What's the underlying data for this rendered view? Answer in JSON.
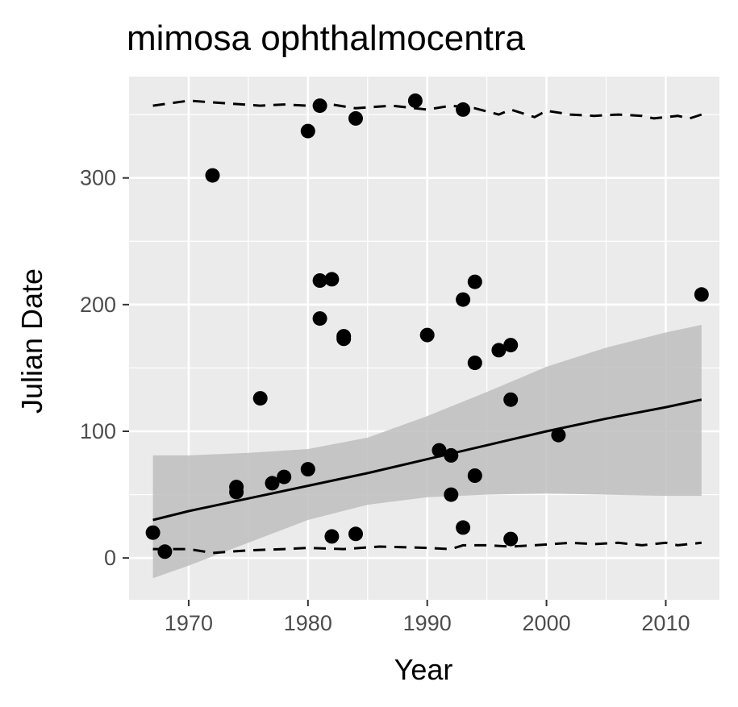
{
  "chart_data": {
    "type": "scatter",
    "title": "mimosa ophthalmocentra",
    "xlabel": "Year",
    "ylabel": "Julian Date",
    "xlim": [
      1965,
      2014.5
    ],
    "ylim": [
      -33,
      380
    ],
    "x_ticks": [
      1970,
      1980,
      1990,
      2000,
      2010
    ],
    "y_ticks": [
      0,
      100,
      200,
      300
    ],
    "x_tick_labels": [
      "1970",
      "1980",
      "1990",
      "2000",
      "2010"
    ],
    "y_tick_labels": [
      "0",
      "100",
      "200",
      "300"
    ],
    "grid": true,
    "colors": {
      "panel": "#ebebeb",
      "grid": "#ffffff",
      "points": "#000000",
      "ribbon": "#bebebe",
      "line": "#000000"
    },
    "points": [
      {
        "x": 1967,
        "y": 20
      },
      {
        "x": 1968,
        "y": 5
      },
      {
        "x": 1972,
        "y": 302
      },
      {
        "x": 1974,
        "y": 52
      },
      {
        "x": 1974,
        "y": 56
      },
      {
        "x": 1976,
        "y": 126
      },
      {
        "x": 1977,
        "y": 59
      },
      {
        "x": 1978,
        "y": 64
      },
      {
        "x": 1980,
        "y": 70
      },
      {
        "x": 1980,
        "y": 337
      },
      {
        "x": 1981,
        "y": 357
      },
      {
        "x": 1981,
        "y": 219
      },
      {
        "x": 1981,
        "y": 189
      },
      {
        "x": 1982,
        "y": 220
      },
      {
        "x": 1982,
        "y": 17
      },
      {
        "x": 1983,
        "y": 175
      },
      {
        "x": 1983,
        "y": 173
      },
      {
        "x": 1984,
        "y": 347
      },
      {
        "x": 1984,
        "y": 19
      },
      {
        "x": 1989,
        "y": 361
      },
      {
        "x": 1990,
        "y": 176
      },
      {
        "x": 1991,
        "y": 85
      },
      {
        "x": 1992,
        "y": 81
      },
      {
        "x": 1992,
        "y": 50
      },
      {
        "x": 1993,
        "y": 354
      },
      {
        "x": 1993,
        "y": 204
      },
      {
        "x": 1993,
        "y": 24
      },
      {
        "x": 1994,
        "y": 218
      },
      {
        "x": 1994,
        "y": 154
      },
      {
        "x": 1994,
        "y": 65
      },
      {
        "x": 1996,
        "y": 164
      },
      {
        "x": 1997,
        "y": 168
      },
      {
        "x": 1997,
        "y": 125
      },
      {
        "x": 1997,
        "y": 15
      },
      {
        "x": 2001,
        "y": 97
      },
      {
        "x": 2013,
        "y": 208
      }
    ],
    "fit_line": {
      "x": [
        1967,
        1970,
        1975,
        1980,
        1985,
        1990,
        1995,
        2000,
        2005,
        2010,
        2013
      ],
      "y": [
        30,
        37,
        47,
        57,
        67,
        78,
        89,
        100,
        110,
        119,
        125
      ]
    },
    "ribbon": {
      "x": [
        1967,
        1970,
        1975,
        1980,
        1985,
        1990,
        1995,
        2000,
        2005,
        2010,
        2013
      ],
      "lower": [
        -16,
        -6,
        12,
        30,
        42,
        48,
        50,
        51,
        50,
        49,
        49
      ],
      "upper": [
        81,
        81,
        83,
        86,
        95,
        112,
        131,
        151,
        166,
        178,
        184
      ]
    },
    "upper_dashed": {
      "x": [
        1967,
        1970,
        1973,
        1976,
        1978,
        1980,
        1982,
        1984,
        1987,
        1990,
        1992,
        1994,
        1996,
        1997,
        1999,
        2000,
        2002,
        2004,
        2006,
        2008,
        2009,
        2011,
        2012,
        2013
      ],
      "y": [
        357,
        361,
        359,
        357,
        358,
        357,
        358,
        355,
        357,
        354,
        357,
        355,
        350,
        354,
        348,
        353,
        350,
        349,
        350,
        349,
        347,
        349,
        347,
        350
      ]
    },
    "lower_dashed": {
      "x": [
        1967,
        1970,
        1972,
        1975,
        1978,
        1980,
        1983,
        1986,
        1990,
        1992,
        1993,
        1995,
        1997,
        1999,
        2002,
        2004,
        2006,
        2008,
        2010,
        2011,
        2013
      ],
      "y": [
        7,
        7,
        4,
        6,
        7,
        8,
        7,
        9,
        8,
        7,
        10,
        10,
        9,
        10,
        12,
        11,
        12,
        10,
        12,
        10,
        12
      ]
    }
  }
}
